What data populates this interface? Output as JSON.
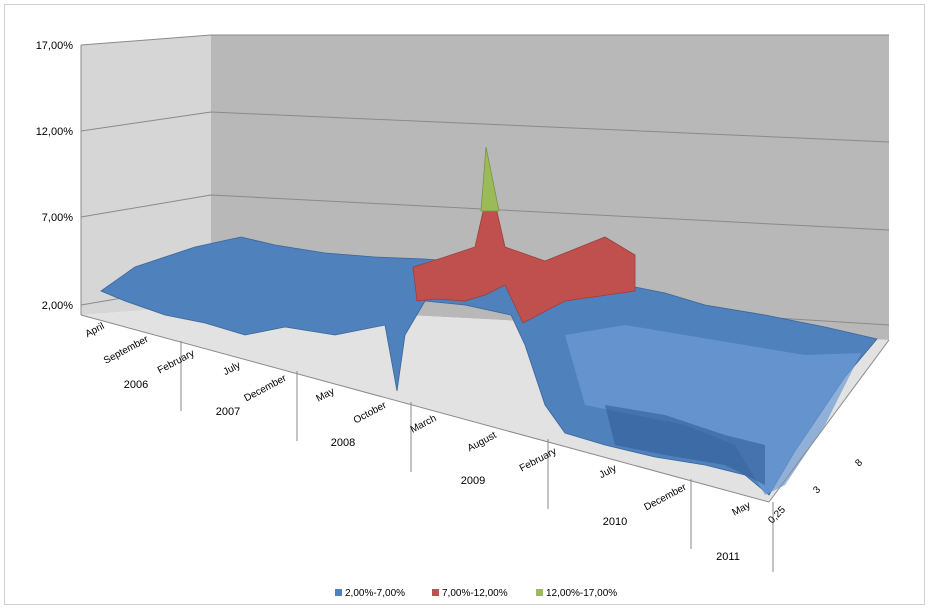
{
  "chart_data": {
    "type": "surface",
    "y_axis": {
      "tick_labels": [
        "2,00%",
        "7,00%",
        "12,00%",
        "17,00%"
      ],
      "range": [
        2.0,
        17.0
      ],
      "units": "%"
    },
    "x_axis": {
      "month_labels": [
        "April",
        "September",
        "February",
        "July",
        "December",
        "May",
        "October",
        "March",
        "August",
        "February",
        "July",
        "December",
        "May"
      ],
      "year_labels": [
        "2006",
        "2007",
        "2008",
        "2009",
        "2010",
        "2011"
      ]
    },
    "depth_axis": {
      "tick_labels": [
        "0,25",
        "3",
        "8"
      ]
    },
    "legend": {
      "placement": "bottom",
      "items": [
        {
          "label": "2,00%-7,00%",
          "color": "#4f81bd"
        },
        {
          "label": "7,00%-12,00%",
          "color": "#c0504d"
        },
        {
          "label": "12,00%-17,00%",
          "color": "#9bbb59"
        }
      ]
    },
    "series_surface_peak_percent_approx": [
      4.4,
      4.6,
      5.2,
      5.0,
      4.6,
      4.2,
      4.0,
      4.4,
      5.8,
      13.5,
      6.8,
      7.2,
      6.0,
      5.0,
      4.6,
      4.4,
      4.2,
      4.6,
      4.4
    ],
    "grid": true
  }
}
